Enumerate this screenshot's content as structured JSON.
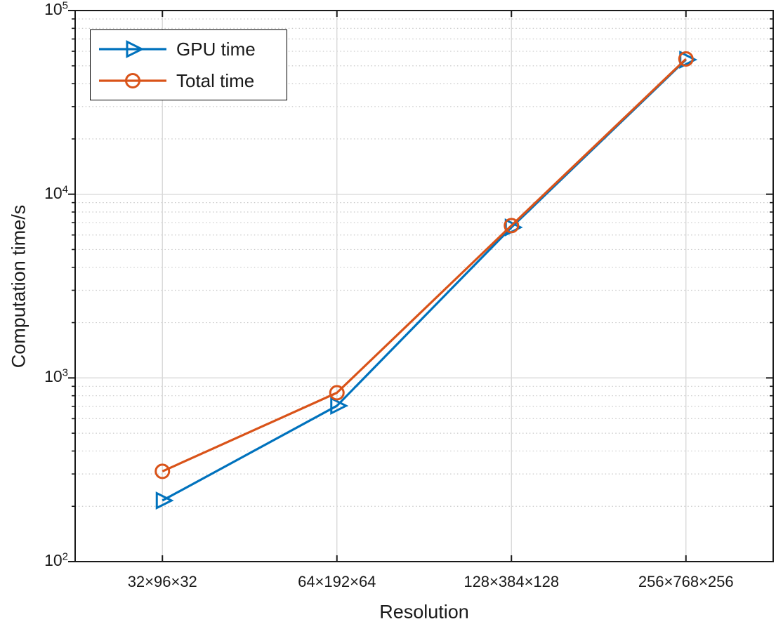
{
  "chart_data": {
    "type": "line",
    "title": "",
    "xlabel": "Resolution",
    "ylabel": "Computation time/s",
    "yscale": "log",
    "ylim": [
      100,
      100000
    ],
    "ytick_exponents": [
      2,
      3,
      4,
      5
    ],
    "grid": {
      "major": true,
      "minor": true
    },
    "legend_position": "top-left",
    "categories": [
      "32×96×32",
      "64×192×64",
      "128×384×128",
      "256×768×256"
    ],
    "series": [
      {
        "name": "GPU time",
        "color": "#0072BD",
        "marker": "triangle-right",
        "values": [
          215,
          705,
          6600,
          54000
        ]
      },
      {
        "name": "Total time",
        "color": "#D95319",
        "marker": "circle",
        "values": [
          310,
          830,
          6750,
          54500
        ]
      }
    ]
  },
  "colors": {
    "background": "#ffffff",
    "axis_border": "#1a1a1a",
    "tick": "#1a1a1a",
    "text": "#1a1a1a",
    "grid_major": "#d9d9d9",
    "grid_minor": "#c9c9c9",
    "legend_border": "#000000"
  }
}
